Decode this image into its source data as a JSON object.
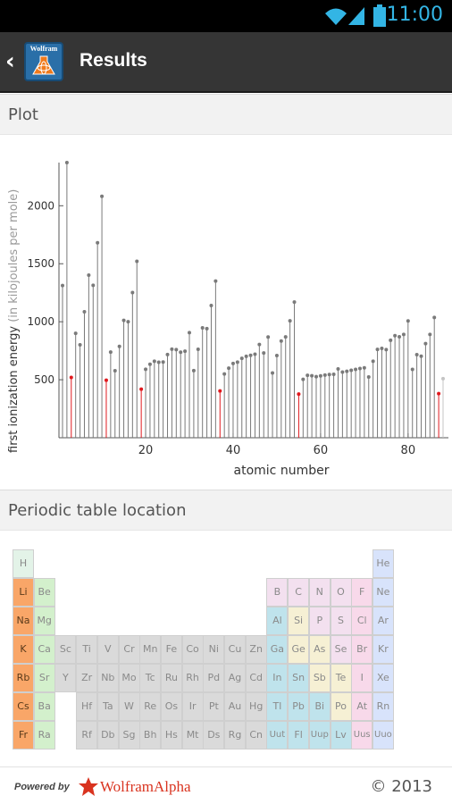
{
  "status_bar": {
    "time": "11:00",
    "accent": "#33b5e5"
  },
  "action_bar": {
    "back_icon": "chevron-left-icon",
    "logo_text": "Wolfram",
    "title": "Results"
  },
  "sections": {
    "plot": "Plot",
    "periodic": "Periodic table location"
  },
  "chart_data": {
    "type": "scatter",
    "xlabel": "atomic number",
    "ylabel": "first ionization energy",
    "ylabel_unit": "(in kilojoules per mole)",
    "x_ticks": [
      20,
      40,
      60,
      80
    ],
    "y_ticks": [
      500,
      1000,
      1500,
      2000
    ],
    "xlim": [
      1,
      88
    ],
    "ylim": [
      0,
      2372
    ],
    "highlight_color": "#e0191e",
    "base_color": "#7a7a7a",
    "highlight_elements": [
      3,
      11,
      19,
      37,
      55,
      87
    ],
    "faded_elements": [
      88
    ],
    "x": [
      1,
      2,
      3,
      4,
      5,
      6,
      7,
      8,
      9,
      10,
      11,
      12,
      13,
      14,
      15,
      16,
      17,
      18,
      19,
      20,
      21,
      22,
      23,
      24,
      25,
      26,
      27,
      28,
      29,
      30,
      31,
      32,
      33,
      34,
      35,
      36,
      37,
      38,
      39,
      40,
      41,
      42,
      43,
      44,
      45,
      46,
      47,
      48,
      49,
      50,
      51,
      52,
      53,
      54,
      55,
      56,
      57,
      58,
      59,
      60,
      61,
      62,
      63,
      64,
      65,
      66,
      67,
      68,
      69,
      70,
      71,
      72,
      73,
      74,
      75,
      76,
      77,
      78,
      79,
      80,
      81,
      82,
      83,
      84,
      85,
      86,
      87,
      88
    ],
    "values": [
      1312,
      2372,
      520,
      900,
      801,
      1086,
      1402,
      1314,
      1681,
      2081,
      496,
      738,
      578,
      787,
      1012,
      1000,
      1251,
      1521,
      419,
      590,
      633,
      659,
      651,
      653,
      717,
      763,
      760,
      737,
      746,
      906,
      579,
      762,
      947,
      941,
      1140,
      1351,
      403,
      550,
      600,
      640,
      652,
      684,
      702,
      710,
      720,
      804,
      731,
      868,
      558,
      709,
      834,
      869,
      1008,
      1170,
      376,
      503,
      538,
      534,
      527,
      533,
      540,
      545,
      547,
      593,
      566,
      573,
      581,
      589,
      597,
      603,
      524,
      659,
      761,
      770,
      760,
      840,
      880,
      870,
      890,
      1007,
      589,
      716,
      703,
      812,
      890,
      1037,
      380,
      509
    ]
  },
  "periodic_table": {
    "colors": {
      "h": "#e3f3e8",
      "alkali": "#f9a668",
      "alkaline": "#d3f0cc",
      "transition": "#dadada",
      "metal": "#bfe3ec",
      "metalloid": "#f6f0d4",
      "nonmetal": "#f3e0ef",
      "halogen": "#f8d9ea",
      "noble": "#d8e3fb",
      "selected": "#f9a668"
    },
    "rows": [
      [
        "H",
        "",
        "",
        "",
        "",
        "",
        "",
        "",
        "",
        "",
        "",
        "",
        "",
        "",
        "",
        "",
        "",
        "He"
      ],
      [
        "Li",
        "Be",
        "",
        "",
        "",
        "",
        "",
        "",
        "",
        "",
        "",
        "",
        "B",
        "C",
        "N",
        "O",
        "F",
        "Ne"
      ],
      [
        "Na",
        "Mg",
        "",
        "",
        "",
        "",
        "",
        "",
        "",
        "",
        "",
        "",
        "Al",
        "Si",
        "P",
        "S",
        "Cl",
        "Ar"
      ],
      [
        "K",
        "Ca",
        "Sc",
        "Ti",
        "V",
        "Cr",
        "Mn",
        "Fe",
        "Co",
        "Ni",
        "Cu",
        "Zn",
        "Ga",
        "Ge",
        "As",
        "Se",
        "Br",
        "Kr"
      ],
      [
        "Rb",
        "Sr",
        "Y",
        "Zr",
        "Nb",
        "Mo",
        "Tc",
        "Ru",
        "Rh",
        "Pd",
        "Ag",
        "Cd",
        "In",
        "Sn",
        "Sb",
        "Te",
        "I",
        "Xe"
      ],
      [
        "Cs",
        "Ba",
        "",
        "Hf",
        "Ta",
        "W",
        "Re",
        "Os",
        "Ir",
        "Pt",
        "Au",
        "Hg",
        "Tl",
        "Pb",
        "Bi",
        "Po",
        "At",
        "Rn"
      ],
      [
        "Fr",
        "Ra",
        "",
        "Rf",
        "Db",
        "Sg",
        "Bh",
        "Hs",
        "Mt",
        "Ds",
        "Rg",
        "Cn",
        "Uut",
        "Fl",
        "Uup",
        "Lv",
        "Uus",
        "Uuo"
      ]
    ]
  },
  "footer": {
    "powered": "Powered by",
    "brand": "WolframAlpha",
    "copyright": "© 2013"
  }
}
